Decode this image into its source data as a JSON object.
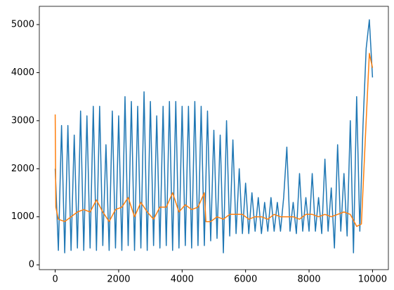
{
  "chart_data": {
    "type": "line",
    "xlim": [
      -500,
      10500
    ],
    "ylim": [
      -100,
      5380
    ],
    "xticks": [
      0,
      2000,
      4000,
      6000,
      8000,
      10000
    ],
    "yticks": [
      0,
      1000,
      2000,
      3000,
      4000,
      5000
    ],
    "grid": false,
    "series": [
      {
        "color": "#1f77b4",
        "x": [
          0,
          100,
          200,
          300,
          400,
          500,
          600,
          700,
          800,
          900,
          1000,
          1100,
          1200,
          1300,
          1400,
          1500,
          1600,
          1700,
          1800,
          1900,
          2000,
          2100,
          2200,
          2300,
          2400,
          2500,
          2600,
          2700,
          2800,
          2900,
          3000,
          3100,
          3200,
          3300,
          3400,
          3500,
          3600,
          3700,
          3800,
          3900,
          4000,
          4100,
          4200,
          4300,
          4400,
          4500,
          4600,
          4700,
          4800,
          4900,
          5000,
          5100,
          5200,
          5300,
          5400,
          5500,
          5600,
          5700,
          5800,
          5900,
          6000,
          6100,
          6200,
          6300,
          6400,
          6500,
          6600,
          6700,
          6800,
          6900,
          7000,
          7100,
          7200,
          7300,
          7400,
          7500,
          7600,
          7700,
          7800,
          7900,
          8000,
          8100,
          8200,
          8300,
          8400,
          8500,
          8600,
          8700,
          8800,
          8900,
          9000,
          9100,
          9200,
          9300,
          9400,
          9500,
          9600,
          9700,
          9800,
          9900,
          10000
        ],
        "values": [
          2000,
          300,
          2900,
          250,
          2900,
          300,
          2700,
          350,
          3200,
          300,
          3100,
          350,
          3300,
          300,
          3300,
          400,
          2500,
          300,
          3200,
          350,
          3100,
          300,
          3500,
          400,
          3400,
          300,
          3300,
          350,
          3600,
          300,
          3400,
          400,
          3100,
          350,
          3300,
          400,
          3400,
          300,
          3400,
          350,
          3300,
          400,
          3300,
          350,
          3400,
          400,
          3300,
          400,
          3200,
          500,
          2800,
          550,
          2700,
          250,
          3000,
          600,
          2600,
          650,
          2000,
          650,
          1700,
          650,
          1500,
          700,
          1400,
          650,
          1300,
          700,
          1400,
          700,
          1300,
          700,
          1400,
          2450,
          700,
          1300,
          650,
          1900,
          700,
          1400,
          700,
          1900,
          700,
          1400,
          650,
          2200,
          700,
          1600,
          350,
          2500,
          700,
          1900,
          600,
          3000,
          250,
          3500,
          700,
          2900,
          4500,
          5100,
          3900
        ]
      },
      {
        "color": "#ff7f0e",
        "x": [
          0,
          20,
          100,
          300,
          500,
          700,
          900,
          1100,
          1300,
          1500,
          1700,
          1900,
          2100,
          2300,
          2500,
          2700,
          2900,
          3100,
          3300,
          3500,
          3700,
          3900,
          4100,
          4300,
          4500,
          4700,
          4750,
          4900,
          5100,
          5300,
          5500,
          5700,
          5900,
          6100,
          6300,
          6500,
          6700,
          6900,
          7100,
          7300,
          7500,
          7700,
          7900,
          8100,
          8300,
          8500,
          8700,
          8900,
          9100,
          9300,
          9500,
          9650,
          9800,
          9900,
          10000
        ],
        "values": [
          3130,
          1200,
          950,
          900,
          1000,
          1100,
          1150,
          1100,
          1350,
          1100,
          900,
          1150,
          1200,
          1400,
          1000,
          1300,
          1100,
          950,
          1200,
          1200,
          1500,
          1100,
          1250,
          1150,
          1200,
          1500,
          900,
          900,
          1000,
          950,
          1050,
          1050,
          1050,
          950,
          1000,
          1000,
          950,
          1050,
          1000,
          1000,
          1000,
          950,
          1050,
          1050,
          1000,
          1050,
          1000,
          1050,
          1100,
          1050,
          800,
          850,
          3000,
          4400,
          4100
        ]
      }
    ]
  }
}
